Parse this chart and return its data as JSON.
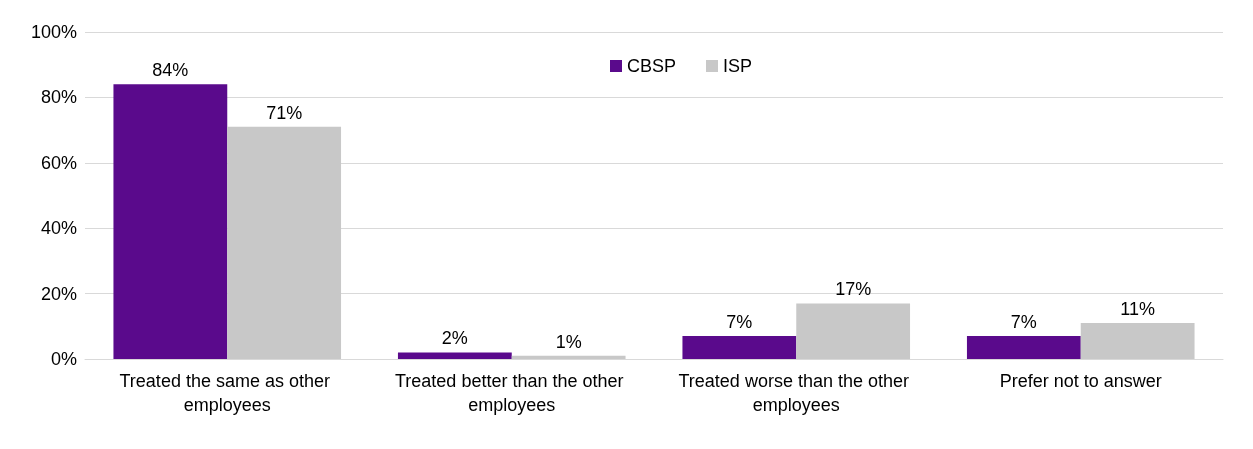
{
  "chart_data": {
    "type": "bar",
    "categories": [
      "Treated the same as other employees",
      "Treated better than the other employees",
      "Treated worse than the other employees",
      "Prefer not to answer"
    ],
    "series": [
      {
        "name": "CBSP",
        "color": "#5a0a8c",
        "values": [
          84,
          2,
          7,
          7
        ],
        "value_labels": [
          "84%",
          "2%",
          "7%",
          "7%"
        ]
      },
      {
        "name": "ISP",
        "color": "#c8c8c8",
        "values": [
          71,
          1,
          17,
          11
        ],
        "value_labels": [
          "71%",
          "1%",
          "17%",
          "11%"
        ]
      }
    ],
    "ylim": [
      0,
      100
    ],
    "yticks": [
      {
        "value": 0,
        "label": "0%"
      },
      {
        "value": 20,
        "label": "20%"
      },
      {
        "value": 40,
        "label": "40%"
      },
      {
        "value": 60,
        "label": "60%"
      },
      {
        "value": 80,
        "label": "80%"
      },
      {
        "value": 100,
        "label": "100%"
      }
    ],
    "grid": "y",
    "legend": "top"
  }
}
